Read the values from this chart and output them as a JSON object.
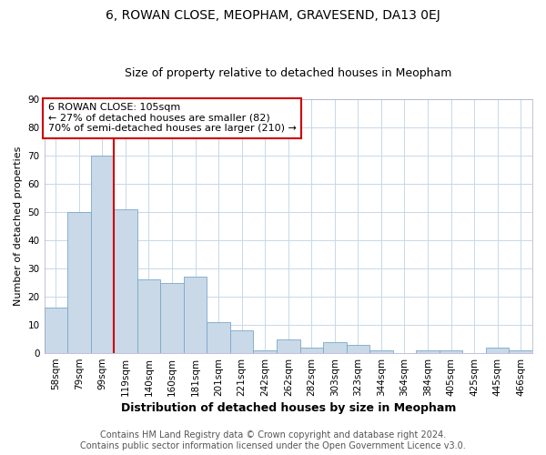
{
  "title": "6, ROWAN CLOSE, MEOPHAM, GRAVESEND, DA13 0EJ",
  "subtitle": "Size of property relative to detached houses in Meopham",
  "xlabel": "Distribution of detached houses by size in Meopham",
  "ylabel": "Number of detached properties",
  "categories": [
    "58sqm",
    "79sqm",
    "99sqm",
    "119sqm",
    "140sqm",
    "160sqm",
    "181sqm",
    "201sqm",
    "221sqm",
    "242sqm",
    "262sqm",
    "282sqm",
    "303sqm",
    "323sqm",
    "344sqm",
    "364sqm",
    "384sqm",
    "405sqm",
    "425sqm",
    "445sqm",
    "466sqm"
  ],
  "values": [
    16,
    50,
    70,
    51,
    26,
    25,
    27,
    11,
    8,
    1,
    5,
    2,
    4,
    3,
    1,
    0,
    1,
    1,
    0,
    2,
    1
  ],
  "bar_color": "#c9d9e8",
  "bar_edgecolor": "#7aA8c8",
  "vline_x": 2.5,
  "vline_color": "#cc0000",
  "annotation_text": "6 ROWAN CLOSE: 105sqm\n← 27% of detached houses are smaller (82)\n70% of semi-detached houses are larger (210) →",
  "annotation_box_color": "#ffffff",
  "annotation_box_edgecolor": "#cc0000",
  "ylim": [
    0,
    90
  ],
  "yticks": [
    0,
    10,
    20,
    30,
    40,
    50,
    60,
    70,
    80,
    90
  ],
  "footer_line1": "Contains HM Land Registry data © Crown copyright and database right 2024.",
  "footer_line2": "Contains public sector information licensed under the Open Government Licence v3.0.",
  "title_fontsize": 10,
  "subtitle_fontsize": 9,
  "xlabel_fontsize": 9,
  "ylabel_fontsize": 8,
  "tick_fontsize": 7.5,
  "annotation_fontsize": 8,
  "footer_fontsize": 7,
  "background_color": "#ffffff",
  "grid_color": "#c8d8e8",
  "fig_width": 6.0,
  "fig_height": 5.0
}
